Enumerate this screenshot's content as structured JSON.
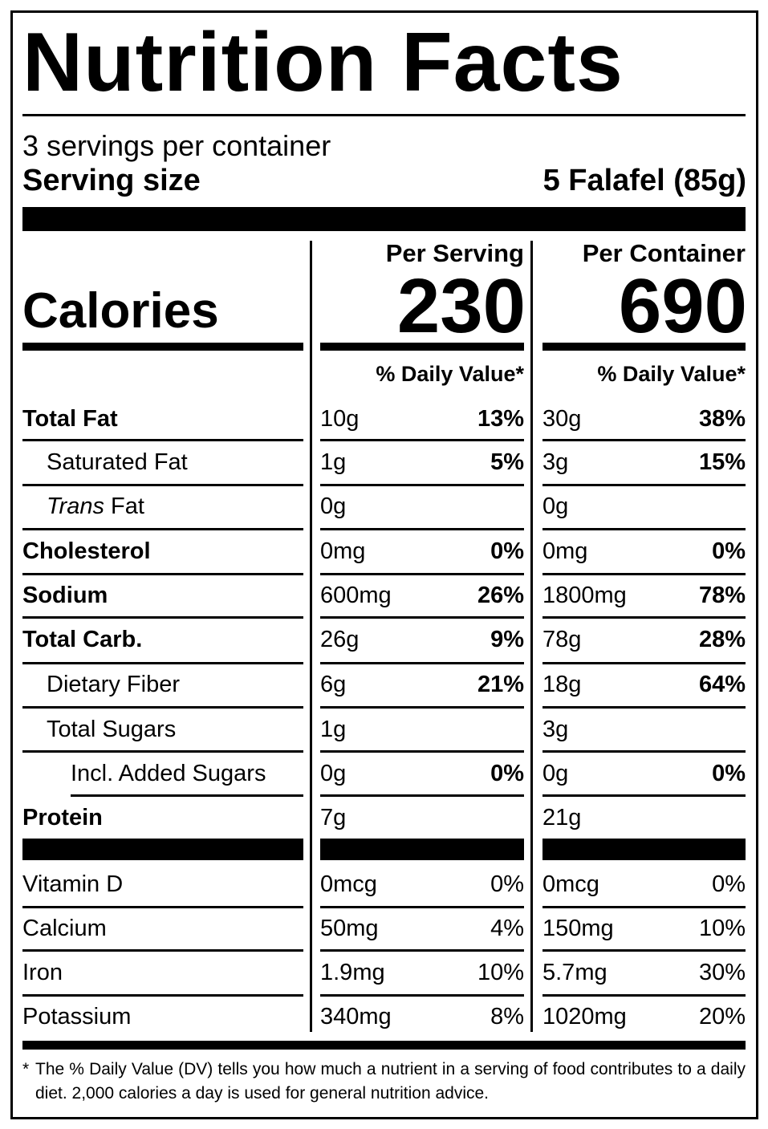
{
  "title": "Nutrition Facts",
  "servings_per_container": "3 servings per container",
  "serving_size_label": "Serving size",
  "serving_size_value": "5 Falafel (85g)",
  "calories_label": "Calories",
  "columns": [
    {
      "header": "Per Serving",
      "calories": "230",
      "dv_header": "% Daily Value*"
    },
    {
      "header": "Per Container",
      "calories": "690",
      "dv_header": "% Daily Value*"
    }
  ],
  "nutrients": [
    {
      "label": "Total Fat",
      "style": "bold",
      "values": [
        {
          "amount": "10g",
          "dv": "13%"
        },
        {
          "amount": "30g",
          "dv": "38%"
        }
      ]
    },
    {
      "label": "Saturated Fat",
      "style": "indent1",
      "values": [
        {
          "amount": "1g",
          "dv": "5%"
        },
        {
          "amount": "3g",
          "dv": "15%"
        }
      ]
    },
    {
      "label_italic": "Trans",
      "label": " Fat",
      "style": "indent1",
      "values": [
        {
          "amount": "0g",
          "dv": ""
        },
        {
          "amount": "0g",
          "dv": ""
        }
      ]
    },
    {
      "label": "Cholesterol",
      "style": "bold",
      "values": [
        {
          "amount": "0mg",
          "dv": "0%"
        },
        {
          "amount": "0mg",
          "dv": "0%"
        }
      ]
    },
    {
      "label": "Sodium",
      "style": "bold",
      "values": [
        {
          "amount": "600mg",
          "dv": "26%"
        },
        {
          "amount": "1800mg",
          "dv": "78%"
        }
      ]
    },
    {
      "label": "Total Carb.",
      "style": "bold",
      "values": [
        {
          "amount": "26g",
          "dv": "9%"
        },
        {
          "amount": "78g",
          "dv": "28%"
        }
      ]
    },
    {
      "label": "Dietary Fiber",
      "style": "indent1",
      "values": [
        {
          "amount": "6g",
          "dv": "21%"
        },
        {
          "amount": "18g",
          "dv": "64%"
        }
      ]
    },
    {
      "label": "Total Sugars",
      "style": "indent1",
      "values": [
        {
          "amount": "1g",
          "dv": ""
        },
        {
          "amount": "3g",
          "dv": ""
        }
      ]
    },
    {
      "label": "Incl. Added Sugars",
      "style": "indent2",
      "values": [
        {
          "amount": "0g",
          "dv": "0%"
        },
        {
          "amount": "0g",
          "dv": "0%"
        }
      ]
    },
    {
      "label": "Protein",
      "style": "bold",
      "values": [
        {
          "amount": "7g",
          "dv": ""
        },
        {
          "amount": "21g",
          "dv": ""
        }
      ]
    }
  ],
  "micronutrients": [
    {
      "label": "Vitamin D",
      "values": [
        {
          "amount": "0mcg",
          "dv": "0%"
        },
        {
          "amount": "0mcg",
          "dv": "0%"
        }
      ]
    },
    {
      "label": "Calcium",
      "values": [
        {
          "amount": "50mg",
          "dv": "4%"
        },
        {
          "amount": "150mg",
          "dv": "10%"
        }
      ]
    },
    {
      "label": "Iron",
      "values": [
        {
          "amount": "1.9mg",
          "dv": "10%"
        },
        {
          "amount": "5.7mg",
          "dv": "30%"
        }
      ]
    },
    {
      "label": "Potassium",
      "values": [
        {
          "amount": "340mg",
          "dv": "8%"
        },
        {
          "amount": "1020mg",
          "dv": "20%"
        }
      ]
    }
  ],
  "footnote": {
    "marker": "*",
    "text": "The % Daily Value (DV) tells you how much a nutrient in a serving of food contributes to a daily diet. 2,000 calories a day is used for general nutrition advice."
  }
}
